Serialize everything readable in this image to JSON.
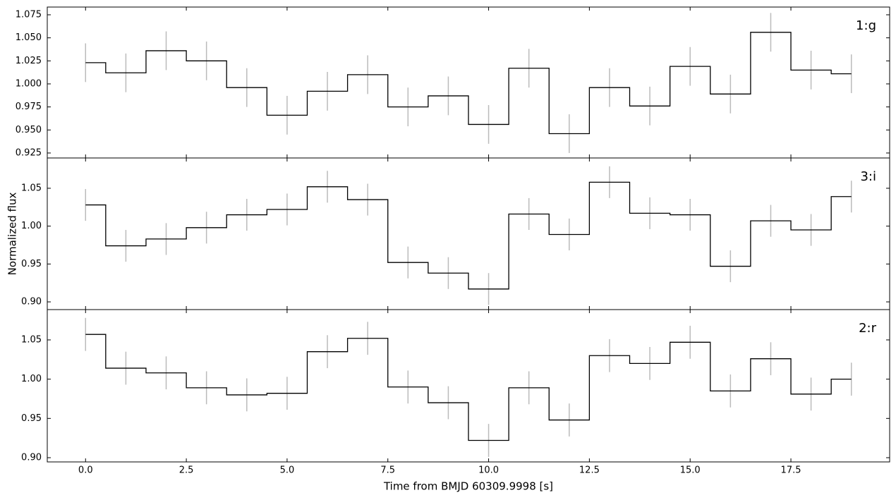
{
  "chart_data": [
    {
      "type": "step",
      "x": [
        0,
        1,
        2,
        3,
        4,
        5,
        6,
        7,
        8,
        9,
        10,
        11,
        12,
        13,
        14,
        15,
        16,
        17,
        18,
        19
      ],
      "series": [
        {
          "name": "1:g",
          "color": "#000000",
          "error_color": "#bbbbbb",
          "values": [
            1.023,
            1.012,
            1.036,
            1.025,
            0.996,
            0.966,
            0.992,
            1.01,
            0.975,
            0.987,
            0.956,
            1.017,
            0.946,
            0.996,
            0.976,
            1.019,
            0.989,
            1.056,
            1.015,
            1.011
          ],
          "errors": [
            0.021,
            0.021,
            0.021,
            0.021,
            0.021,
            0.021,
            0.021,
            0.021,
            0.021,
            0.021,
            0.021,
            0.021,
            0.021,
            0.021,
            0.021,
            0.021,
            0.021,
            0.021,
            0.021,
            0.021
          ]
        }
      ],
      "xlim": [
        -0.95,
        19.95
      ],
      "xticks": [
        {
          "value": 0,
          "label": "0.0"
        },
        {
          "value": 2.5,
          "label": "2.5"
        },
        {
          "value": 5,
          "label": "5.0"
        },
        {
          "value": 7.5,
          "label": "7.5"
        },
        {
          "value": 10,
          "label": "10.0"
        },
        {
          "value": 12.5,
          "label": "12.5"
        },
        {
          "value": 15,
          "label": "15.0"
        },
        {
          "value": 17.5,
          "label": "17.5"
        }
      ],
      "ylim": [
        0.9196,
        1.0834
      ],
      "yticks": [
        {
          "value": 0.925,
          "label": "0.925"
        },
        {
          "value": 0.95,
          "label": "0.950"
        },
        {
          "value": 0.975,
          "label": "0.975"
        },
        {
          "value": 1,
          "label": "1.000"
        },
        {
          "value": 1.025,
          "label": "1.025"
        },
        {
          "value": 1.05,
          "label": "1.050"
        },
        {
          "value": 1.075,
          "label": "1.075"
        }
      ]
    },
    {
      "type": "step",
      "ylabel": "Normalized flux",
      "x": [
        0,
        1,
        2,
        3,
        4,
        5,
        6,
        7,
        8,
        9,
        10,
        11,
        12,
        13,
        14,
        15,
        16,
        17,
        18,
        19
      ],
      "series": [
        {
          "name": "3:i",
          "color": "#000000",
          "error_color": "#bbbbbb",
          "values": [
            1.028,
            0.974,
            0.983,
            0.998,
            1.015,
            1.022,
            1.052,
            1.035,
            0.952,
            0.938,
            0.917,
            1.016,
            0.989,
            1.058,
            1.017,
            1.015,
            0.947,
            1.007,
            0.995,
            1.039
          ],
          "errors": [
            0.021,
            0.021,
            0.021,
            0.021,
            0.021,
            0.021,
            0.021,
            0.021,
            0.021,
            0.021,
            0.021,
            0.021,
            0.021,
            0.021,
            0.021,
            0.021,
            0.021,
            0.021,
            0.021,
            0.021
          ]
        }
      ],
      "xlim": [
        -0.95,
        19.95
      ],
      "xticks": [
        {
          "value": 0,
          "label": "0.0"
        },
        {
          "value": 2.5,
          "label": "2.5"
        },
        {
          "value": 5,
          "label": "5.0"
        },
        {
          "value": 7.5,
          "label": "7.5"
        },
        {
          "value": 10,
          "label": "10.0"
        },
        {
          "value": 12.5,
          "label": "12.5"
        },
        {
          "value": 15,
          "label": "15.0"
        },
        {
          "value": 17.5,
          "label": "17.5"
        }
      ],
      "ylim": [
        0.8898,
        1.09
      ],
      "yticks": [
        {
          "value": 0.9,
          "label": "0.90"
        },
        {
          "value": 0.95,
          "label": "0.95"
        },
        {
          "value": 1,
          "label": "1.00"
        },
        {
          "value": 1.05,
          "label": "1.05"
        }
      ]
    },
    {
      "type": "step",
      "xlabel": "Time from BMJD 60309.9998 [s]",
      "x": [
        0,
        1,
        2,
        3,
        4,
        5,
        6,
        7,
        8,
        9,
        10,
        11,
        12,
        13,
        14,
        15,
        16,
        17,
        18,
        19
      ],
      "series": [
        {
          "name": "2:r",
          "color": "#000000",
          "error_color": "#bbbbbb",
          "values": [
            1.057,
            1.014,
            1.008,
            0.989,
            0.98,
            0.982,
            1.035,
            1.052,
            0.99,
            0.97,
            0.922,
            0.989,
            0.948,
            1.03,
            1.02,
            1.047,
            0.985,
            1.026,
            0.981,
            1.0
          ],
          "errors": [
            0.021,
            0.021,
            0.021,
            0.021,
            0.021,
            0.021,
            0.021,
            0.021,
            0.021,
            0.021,
            0.021,
            0.021,
            0.021,
            0.021,
            0.021,
            0.021,
            0.021,
            0.021,
            0.021,
            0.021
          ]
        }
      ],
      "xlim": [
        -0.95,
        19.95
      ],
      "xticks": [
        {
          "value": 0,
          "label": "0.0"
        },
        {
          "value": 2.5,
          "label": "2.5"
        },
        {
          "value": 5,
          "label": "5.0"
        },
        {
          "value": 7.5,
          "label": "7.5"
        },
        {
          "value": 10,
          "label": "10.0"
        },
        {
          "value": 12.5,
          "label": "12.5"
        },
        {
          "value": 15,
          "label": "15.0"
        },
        {
          "value": 17.5,
          "label": "17.5"
        }
      ],
      "ylim": [
        0.8946,
        1.0886
      ],
      "yticks": [
        {
          "value": 0.9,
          "label": "0.90"
        },
        {
          "value": 0.95,
          "label": "0.95"
        },
        {
          "value": 1,
          "label": "1.00"
        },
        {
          "value": 1.05,
          "label": "1.05"
        }
      ]
    }
  ]
}
